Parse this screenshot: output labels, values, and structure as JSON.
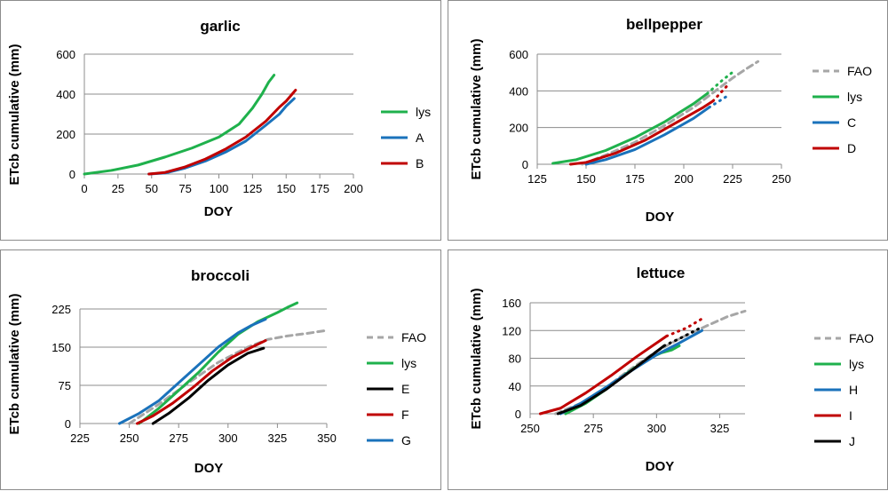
{
  "chart_data": [
    {
      "type": "line",
      "title": "garlic",
      "xlabel": "DOY",
      "ylabel": "ETcb cumulative (mm)",
      "xlim": [
        0,
        200
      ],
      "ylim": [
        0,
        600
      ],
      "xticks": [
        0,
        25,
        50,
        75,
        100,
        125,
        150,
        175,
        200
      ],
      "yticks": [
        0,
        200,
        400,
        600
      ],
      "series": [
        {
          "name": "lys",
          "color": "#1fb14c",
          "style": "solid",
          "x": [
            0,
            20,
            40,
            60,
            80,
            100,
            115,
            125,
            132,
            137,
            141
          ],
          "y": [
            0,
            18,
            45,
            85,
            130,
            185,
            250,
            330,
            400,
            460,
            495
          ]
        },
        {
          "name": "A",
          "color": "#1a72bb",
          "style": "solid",
          "x": [
            48,
            60,
            75,
            90,
            105,
            120,
            135,
            145,
            150,
            156
          ],
          "y": [
            0,
            5,
            30,
            65,
            110,
            165,
            245,
            300,
            340,
            378
          ]
        },
        {
          "name": "B",
          "color": "#c00000",
          "style": "solid",
          "x": [
            48,
            60,
            75,
            90,
            105,
            120,
            135,
            145,
            150,
            157
          ],
          "y": [
            0,
            8,
            36,
            75,
            125,
            185,
            265,
            335,
            365,
            420
          ]
        }
      ]
    },
    {
      "type": "line",
      "title": "bellpepper",
      "xlabel": "DOY",
      "ylabel": "ETcb cumulative (mm)",
      "xlim": [
        125,
        250
      ],
      "ylim": [
        0,
        600
      ],
      "xticks": [
        125,
        150,
        175,
        200,
        225,
        250
      ],
      "yticks": [
        0,
        200,
        400,
        600
      ],
      "series": [
        {
          "name": "FAO",
          "color": "#a6a6a6",
          "style": "dashed",
          "x": [
            148,
            160,
            175,
            190,
            205,
            215,
            225,
            232,
            238
          ],
          "y": [
            0,
            50,
            120,
            210,
            310,
            390,
            470,
            520,
            560
          ]
        },
        {
          "name": "lys",
          "color": "#1fb14c",
          "style": "solid",
          "dotted_from": 212,
          "x": [
            133,
            145,
            160,
            175,
            190,
            205,
            212,
            220,
            226
          ],
          "y": [
            5,
            25,
            75,
            145,
            230,
            330,
            385,
            460,
            510
          ]
        },
        {
          "name": "C",
          "color": "#1a72bb",
          "style": "solid",
          "dotted_from": 213,
          "x": [
            150,
            160,
            175,
            190,
            205,
            213,
            222
          ],
          "y": [
            0,
            25,
            80,
            160,
            250,
            310,
            370
          ]
        },
        {
          "name": "D",
          "color": "#c00000",
          "style": "solid",
          "dotted_from": 215,
          "x": [
            142,
            150,
            165,
            180,
            195,
            210,
            215,
            222
          ],
          "y": [
            0,
            10,
            60,
            130,
            220,
            310,
            345,
            425
          ]
        }
      ]
    },
    {
      "type": "line",
      "title": "broccoli",
      "xlabel": "DOY",
      "ylabel": "ETcb cumulative (mm)",
      "xlim": [
        225,
        350
      ],
      "ylim": [
        0,
        225
      ],
      "xticks": [
        225,
        250,
        275,
        300,
        325,
        350
      ],
      "yticks": [
        0,
        75,
        150,
        225
      ],
      "series": [
        {
          "name": "FAO",
          "color": "#a6a6a6",
          "style": "dashed",
          "x": [
            250,
            265,
            280,
            295,
            310,
            320,
            330,
            340,
            350
          ],
          "y": [
            0,
            38,
            80,
            120,
            150,
            165,
            172,
            177,
            183
          ]
        },
        {
          "name": "lys",
          "color": "#1fb14c",
          "style": "solid",
          "x": [
            255,
            265,
            275,
            285,
            295,
            305,
            315,
            325,
            330,
            335
          ],
          "y": [
            0,
            30,
            65,
            100,
            140,
            175,
            200,
            218,
            228,
            237
          ]
        },
        {
          "name": "E",
          "color": "#000000",
          "style": "solid",
          "x": [
            262,
            270,
            280,
            290,
            300,
            310,
            318
          ],
          "y": [
            0,
            20,
            50,
            85,
            115,
            138,
            148
          ]
        },
        {
          "name": "F",
          "color": "#c00000",
          "style": "solid",
          "x": [
            254,
            262,
            272,
            282,
            292,
            302,
            312,
            319
          ],
          "y": [
            0,
            15,
            40,
            70,
            103,
            130,
            150,
            163
          ]
        },
        {
          "name": "G",
          "color": "#1a72bb",
          "style": "solid",
          "x": [
            245,
            255,
            265,
            275,
            285,
            295,
            305,
            312,
            319
          ],
          "y": [
            0,
            20,
            45,
            80,
            115,
            150,
            178,
            193,
            205
          ]
        }
      ]
    },
    {
      "type": "line",
      "title": "lettuce",
      "xlabel": "DOY",
      "ylabel": "ETcb cumulative (mm)",
      "xlim": [
        250,
        335
      ],
      "ylim": [
        0,
        160
      ],
      "xticks": [
        250,
        275,
        300,
        325
      ],
      "yticks": [
        0,
        40,
        80,
        120,
        160
      ],
      "series": [
        {
          "name": "FAO",
          "color": "#a6a6a6",
          "style": "dashed",
          "x": [
            260,
            270,
            280,
            290,
            300,
            310,
            320,
            328,
            335
          ],
          "y": [
            0,
            15,
            38,
            65,
            90,
            110,
            127,
            140,
            148
          ]
        },
        {
          "name": "lys",
          "color": "#1fb14c",
          "style": "solid",
          "x": [
            264,
            272,
            280,
            288,
            296,
            302,
            306,
            309
          ],
          "y": [
            0,
            15,
            35,
            58,
            78,
            88,
            92,
            98
          ]
        },
        {
          "name": "H",
          "color": "#1a72bb",
          "style": "solid",
          "x": [
            262,
            270,
            280,
            290,
            300,
            308,
            314,
            318
          ],
          "y": [
            0,
            15,
            38,
            62,
            85,
            100,
            112,
            120
          ]
        },
        {
          "name": "I",
          "color": "#c00000",
          "style": "solid",
          "dotted_from": 304,
          "x": [
            254,
            262,
            272,
            282,
            292,
            304,
            312,
            318
          ],
          "y": [
            0,
            8,
            30,
            55,
            82,
            112,
            124,
            137
          ]
        },
        {
          "name": "J",
          "color": "#000000",
          "style": "solid",
          "dotted_from": 303,
          "x": [
            261,
            270,
            280,
            290,
            303,
            310,
            318
          ],
          "y": [
            0,
            12,
            35,
            62,
            98,
            110,
            125
          ]
        }
      ]
    }
  ]
}
